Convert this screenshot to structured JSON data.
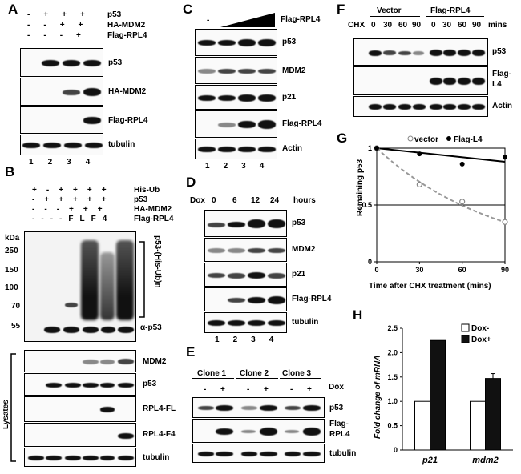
{
  "panels": {
    "A": {
      "letter": "A",
      "rows": [
        {
          "label": "p53",
          "signs": [
            "-",
            "+",
            "+",
            "+"
          ]
        },
        {
          "label": "HA-MDM2",
          "signs": [
            "-",
            "-",
            "+",
            "+"
          ]
        },
        {
          "label": "Flag-RPL4",
          "signs": [
            "-",
            "-",
            "-",
            "+"
          ]
        }
      ],
      "blots": [
        "p53",
        "HA-MDM2",
        "Flag-RPL4",
        "tubulin"
      ],
      "lanes": [
        "1",
        "2",
        "3",
        "4"
      ]
    },
    "B": {
      "letter": "B",
      "rows": [
        {
          "label": "His-Ub",
          "signs": [
            "+",
            "-",
            "+",
            "+",
            "+",
            "+"
          ]
        },
        {
          "label": "p53",
          "signs": [
            "-",
            "+",
            "+",
            "+",
            "+",
            "+"
          ]
        },
        {
          "label": "HA-MDM2",
          "signs": [
            "-",
            "-",
            "-",
            "+",
            "+",
            "+"
          ]
        },
        {
          "label": "Flag-RPL4",
          "signs": [
            "-",
            "-",
            "-",
            "-",
            "FL",
            "F4"
          ]
        }
      ],
      "kda_label": "kDa",
      "markers": [
        "250",
        "150",
        "100",
        "70",
        "55"
      ],
      "bracket_label": "p53-(His-Ub)n",
      "alpha_label": "α-p53",
      "lysates_label": "Lysates",
      "lysate_blots": [
        "MDM2",
        "p53",
        "RPL4-FL",
        "RPL4-F4",
        "tubulin"
      ]
    },
    "C": {
      "letter": "C",
      "header_minus": "-",
      "header_label": "Flag-RPL4",
      "blots": [
        "p53",
        "MDM2",
        "p21",
        "Flag-RPL4",
        "Actin"
      ],
      "lanes": [
        "1",
        "2",
        "3",
        "4"
      ]
    },
    "D": {
      "letter": "D",
      "dox_label": "Dox",
      "times": [
        "0",
        "6",
        "12",
        "24"
      ],
      "unit": "hours",
      "blots": [
        "p53",
        "MDM2",
        "p21",
        "Flag-RPL4",
        "tubulin"
      ],
      "lanes": [
        "1",
        "2",
        "3",
        "4"
      ]
    },
    "E": {
      "letter": "E",
      "clones": [
        "Clone 1",
        "Clone 2",
        "Clone 3"
      ],
      "signs": [
        "-",
        "+",
        "-",
        "+",
        "-",
        "+"
      ],
      "dox_label": "Dox",
      "blots": [
        "p53",
        "Flag-\nRPL4",
        "tubulin"
      ],
      "blot_label_p53": "p53",
      "blot_label_flag1": "Flag-",
      "blot_label_flag2": "RPL4",
      "blot_label_tub": "tubulin"
    },
    "F": {
      "letter": "F",
      "groups": [
        "Vector",
        "Flag-RPL4"
      ],
      "chx_label": "CHX",
      "times": [
        "0",
        "30",
        "60",
        "90",
        "0",
        "30",
        "60",
        "90"
      ],
      "unit": "mins",
      "blot_p53": "p53",
      "blot_flag1": "Flag-",
      "blot_flag2": "L4",
      "blot_actin": "Actin"
    },
    "G": {
      "letter": "G",
      "legend_vector": "vector",
      "legend_flag": "Flag-L4",
      "ylabel": "Remaining p53",
      "xlabel": "Time after CHX treatment (mins)",
      "yticks": [
        "0",
        "0.5",
        "1"
      ],
      "xticks": [
        "0",
        "30",
        "60",
        "90"
      ]
    },
    "H": {
      "letter": "H",
      "ylabel": "Fold change of mRNA",
      "yticks": [
        "0",
        "0.5",
        "1.0",
        "1.5",
        "2.0",
        "2.5"
      ],
      "legend_minus": "Dox-",
      "legend_plus": "Dox+",
      "categories": [
        "p21",
        "mdm2"
      ]
    }
  },
  "chart_data": [
    {
      "type": "scatter",
      "panel": "G",
      "xlabel": "Time after CHX treatment (mins)",
      "ylabel": "Remaining p53",
      "xlim": [
        0,
        90
      ],
      "ylim": [
        0,
        1
      ],
      "series": [
        {
          "name": "vector",
          "x": [
            0,
            30,
            60,
            90
          ],
          "values": [
            1.0,
            0.68,
            0.53,
            0.35
          ],
          "color": "#999999"
        },
        {
          "name": "Flag-L4",
          "x": [
            0,
            30,
            60,
            90
          ],
          "values": [
            1.0,
            0.95,
            0.86,
            0.92
          ],
          "color": "#000000"
        }
      ]
    },
    {
      "type": "bar",
      "panel": "H",
      "ylabel": "Fold change of mRNA",
      "ylim": [
        0,
        2.5
      ],
      "categories": [
        "p21",
        "mdm2"
      ],
      "series": [
        {
          "name": "Dox-",
          "values": [
            1.0,
            1.0
          ],
          "color": "#ffffff"
        },
        {
          "name": "Dox+",
          "values": [
            2.25,
            1.47
          ],
          "color": "#111111"
        }
      ],
      "error": [
        0,
        0.1
      ]
    }
  ]
}
